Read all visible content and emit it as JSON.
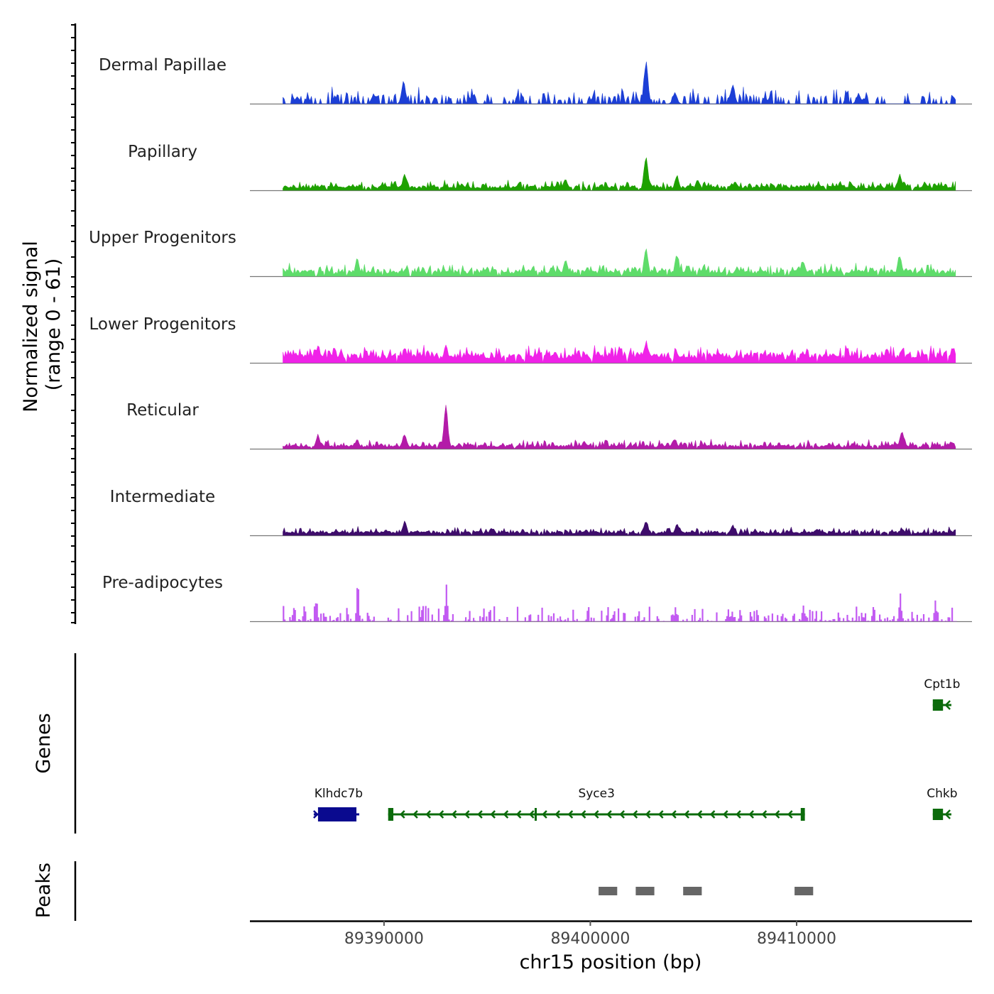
{
  "chart_data": {
    "type": "area",
    "title": "",
    "signal_axis_label_line1": "Normalized signal",
    "signal_axis_label_line2": "(range 0 - 61)",
    "ylim": [
      0,
      61
    ],
    "xlabel": "chr15 position (bp)",
    "xlim": [
      89383500,
      89418500
    ],
    "x_ticks": [
      {
        "value": 89390000,
        "label": "89390000"
      },
      {
        "value": 89400000,
        "label": "89400000"
      },
      {
        "value": 89410000,
        "label": "89410000"
      }
    ],
    "signal_range": [
      89385100,
      89417700
    ],
    "tracks": [
      {
        "name": "Dermal Papillae",
        "color": "#1c3fd6",
        "baseline": 10,
        "noise": 14,
        "sparse": 0.55,
        "peaks": [
          {
            "x": 89390950,
            "y": 30
          },
          {
            "x": 89402700,
            "y": 58
          },
          {
            "x": 89406900,
            "y": 28
          },
          {
            "x": 89385800,
            "y": 10
          },
          {
            "x": 89389500,
            "y": 14
          },
          {
            "x": 89394300,
            "y": 12
          },
          {
            "x": 89404100,
            "y": 16
          },
          {
            "x": 89413000,
            "y": 14
          }
        ]
      },
      {
        "name": "Papillary",
        "color": "#1ea100",
        "baseline": 6,
        "noise": 8,
        "sparse": 0.05,
        "peaks": [
          {
            "x": 89391000,
            "y": 22
          },
          {
            "x": 89402700,
            "y": 46
          },
          {
            "x": 89404200,
            "y": 21
          },
          {
            "x": 89415000,
            "y": 22
          },
          {
            "x": 89398800,
            "y": 15
          },
          {
            "x": 89405200,
            "y": 14
          },
          {
            "x": 89407000,
            "y": 12
          }
        ]
      },
      {
        "name": "Upper Progenitors",
        "color": "#5edc6a",
        "baseline": 8,
        "noise": 10,
        "sparse": 0.05,
        "peaks": [
          {
            "x": 89388700,
            "y": 24
          },
          {
            "x": 89398800,
            "y": 24
          },
          {
            "x": 89402700,
            "y": 42
          },
          {
            "x": 89404200,
            "y": 32
          },
          {
            "x": 89415000,
            "y": 32
          },
          {
            "x": 89410300,
            "y": 22
          },
          {
            "x": 89407100,
            "y": 13
          }
        ]
      },
      {
        "name": "Lower Progenitors",
        "color": "#f022e8",
        "baseline": 12,
        "noise": 12,
        "sparse": 0.03,
        "peaks": [
          {
            "x": 89386800,
            "y": 26
          },
          {
            "x": 89387600,
            "y": 23
          },
          {
            "x": 89393000,
            "y": 26
          },
          {
            "x": 89402700,
            "y": 30
          },
          {
            "x": 89391000,
            "y": 22
          },
          {
            "x": 89410300,
            "y": 16
          },
          {
            "x": 89415100,
            "y": 20
          }
        ]
      },
      {
        "name": "Reticular",
        "color": "#b31ba8",
        "baseline": 5,
        "noise": 8,
        "sparse": 0.04,
        "peaks": [
          {
            "x": 89393000,
            "y": 58
          },
          {
            "x": 89391000,
            "y": 22
          },
          {
            "x": 89386800,
            "y": 20
          },
          {
            "x": 89415100,
            "y": 24
          },
          {
            "x": 89388700,
            "y": 13
          },
          {
            "x": 89404100,
            "y": 14
          },
          {
            "x": 89399700,
            "y": 10
          }
        ]
      },
      {
        "name": "Intermediate",
        "color": "#3e0c6b",
        "baseline": 5,
        "noise": 7,
        "sparse": 0.04,
        "peaks": [
          {
            "x": 89391000,
            "y": 20
          },
          {
            "x": 89402700,
            "y": 22
          },
          {
            "x": 89404200,
            "y": 17
          },
          {
            "x": 89406900,
            "y": 14
          },
          {
            "x": 89395200,
            "y": 10
          },
          {
            "x": 89415100,
            "y": 10
          },
          {
            "x": 89411000,
            "y": 9
          }
        ]
      },
      {
        "name": "Pre-adipocytes",
        "color": "#c25af2",
        "baseline": 0,
        "noise": 20,
        "sparse": 0.55,
        "spiky": true,
        "peaks": [
          {
            "x": 89388700,
            "y": 58
          },
          {
            "x": 89393000,
            "y": 50
          },
          {
            "x": 89386700,
            "y": 30
          },
          {
            "x": 89415000,
            "y": 38
          },
          {
            "x": 89416700,
            "y": 30
          },
          {
            "x": 89410300,
            "y": 25
          },
          {
            "x": 89404100,
            "y": 20
          }
        ]
      }
    ],
    "genes_label": "Genes",
    "genes": [
      {
        "name": "Cpt1b",
        "start": 89416600,
        "end": 89417500,
        "strand": "-",
        "color": "#0b6b0b",
        "row": 1
      },
      {
        "name": "Klhdc7b",
        "start": 89386800,
        "end": 89388800,
        "strand": "+",
        "color": "#0a0a8f",
        "row": 2
      },
      {
        "name": "Syce3",
        "start": 89390200,
        "end": 89410400,
        "strand": "-",
        "color": "#0b6b0b",
        "row": 2,
        "exons": [
          {
            "start": 89390200,
            "end": 89390450
          },
          {
            "start": 89397300,
            "end": 89397400
          },
          {
            "start": 89410200,
            "end": 89410400
          }
        ]
      },
      {
        "name": "Chkb",
        "start": 89416600,
        "end": 89417500,
        "strand": "-",
        "color": "#0b6b0b",
        "row": 2
      }
    ],
    "peaks_label": "Peaks",
    "peaks": [
      {
        "start": 89400400,
        "end": 89401300
      },
      {
        "start": 89402200,
        "end": 89403100
      },
      {
        "start": 89404500,
        "end": 89405400
      },
      {
        "start": 89409900,
        "end": 89410800
      }
    ]
  }
}
